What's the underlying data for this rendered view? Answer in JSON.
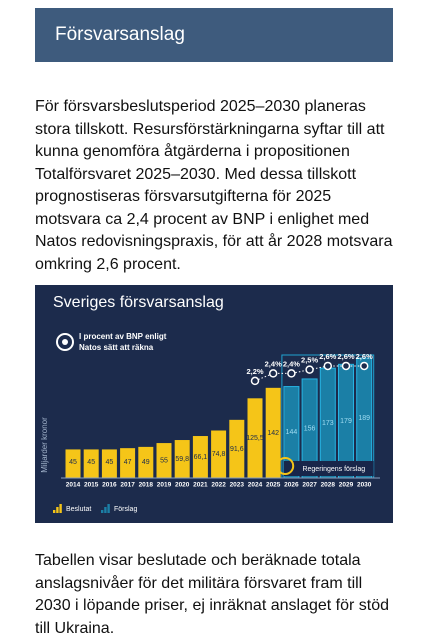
{
  "header": {
    "title": "Försvarsanslag"
  },
  "paragraphs": [
    "För försvarsbeslutsperiod 2025–2030 planeras stora tillskott. Resursförstärkningarna syftar till att kunna genomföra åtgärderna i propositionen Totalförsvaret 2025–2030. Med dessa tillskott prognostiseras försvarsutgifterna för 2025 motsvara ca 2,4 procent av BNP i enlighet med Natos redovisningspraxis, för att år 2028 motsvara omkring 2,6 procent.",
    "Tabellen visar beslutade och beräknade totala anslagsnivåer för det militära försvaret fram till 2030 i löpande priser, ej inräknat anslaget för stöd till Ukraina."
  ],
  "chart_data": {
    "type": "bar",
    "title": "Sveriges försvarsanslag",
    "ylabel": "Miljarder kronor",
    "categories": [
      "2014",
      "2015",
      "2016",
      "2017",
      "2018",
      "2019",
      "2020",
      "2021",
      "2022",
      "2023",
      "2024",
      "2025",
      "2026",
      "2027",
      "2028",
      "2029",
      "2030"
    ],
    "series": [
      {
        "name": "Beslutat",
        "color": "#f5c518",
        "values": [
          45,
          45,
          45,
          47,
          49,
          55,
          59.8,
          66.1,
          74.8,
          91.6,
          125.5,
          142,
          null,
          null,
          null,
          null,
          null
        ],
        "value_labels": [
          "45",
          "45",
          "45",
          "47",
          "49",
          "55",
          "59,8",
          "66,1",
          "74,8",
          "91,6",
          "125,5",
          "142",
          null,
          null,
          null,
          null,
          null
        ]
      },
      {
        "name": "Förslag",
        "color": "#1b7fa6",
        "values": [
          null,
          null,
          null,
          null,
          null,
          null,
          null,
          null,
          null,
          null,
          null,
          null,
          144,
          156,
          173,
          179,
          189
        ],
        "value_labels": [
          null,
          null,
          null,
          null,
          null,
          null,
          null,
          null,
          null,
          null,
          null,
          null,
          "144",
          "156",
          "173",
          "179",
          "189"
        ]
      }
    ],
    "bnp_share": {
      "label_lines": [
        "I procent av BNP enligt",
        "Natos sätt att räkna"
      ],
      "axis": "y2",
      "values": [
        null,
        null,
        null,
        null,
        null,
        null,
        null,
        null,
        null,
        null,
        2.2,
        2.4,
        2.4,
        2.5,
        2.6,
        2.6,
        2.6
      ],
      "value_labels": [
        null,
        null,
        null,
        null,
        null,
        null,
        null,
        null,
        null,
        null,
        "2,2%",
        "2,4%",
        "2,4%",
        "2,5%",
        "2,6%",
        "2,6%",
        "2,6%"
      ]
    },
    "proposal_note": "Regeringens förslag",
    "ylim": [
      0,
      200
    ],
    "y2lim": [
      -0.4,
      3.0
    ]
  }
}
